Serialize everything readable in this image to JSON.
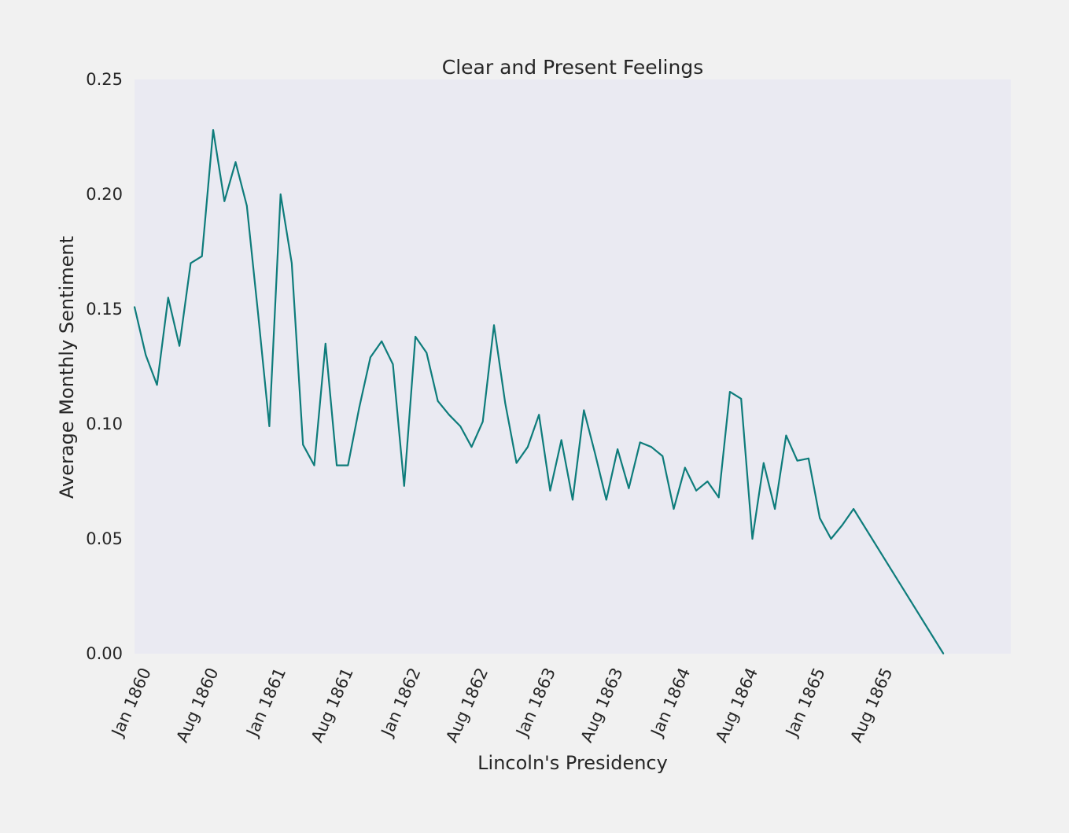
{
  "chart_data": {
    "type": "line",
    "title": "Clear and Present Feelings",
    "xlabel": "Lincoln's Presidency",
    "ylabel": "Average Monthly Sentiment",
    "ylim": [
      0.0,
      0.25
    ],
    "y_ticks": [
      {
        "value": 0.0,
        "label": "0.00"
      },
      {
        "value": 0.05,
        "label": "0.05"
      },
      {
        "value": 0.1,
        "label": "0.10"
      },
      {
        "value": 0.15,
        "label": "0.15"
      },
      {
        "value": 0.2,
        "label": "0.20"
      },
      {
        "value": 0.25,
        "label": "0.25"
      }
    ],
    "xlim_months": [
      0,
      78
    ],
    "x_ticks": [
      {
        "month_index": 1,
        "label": "Jan 1860"
      },
      {
        "month_index": 7,
        "label": "Aug 1860"
      },
      {
        "month_index": 13,
        "label": "Jan 1861"
      },
      {
        "month_index": 19,
        "label": "Aug 1861"
      },
      {
        "month_index": 25,
        "label": "Jan 1862"
      },
      {
        "month_index": 31,
        "label": "Aug 1862"
      },
      {
        "month_index": 37,
        "label": "Jan 1863"
      },
      {
        "month_index": 43,
        "label": "Aug 1863"
      },
      {
        "month_index": 49,
        "label": "Jan 1864"
      },
      {
        "month_index": 55,
        "label": "Aug 1864"
      },
      {
        "month_index": 61,
        "label": "Jan 1865"
      },
      {
        "month_index": 67,
        "label": "Aug 1865"
      }
    ],
    "grid": false,
    "line_color": "#0e7c7b",
    "plot_background": "#eaeaf2",
    "series": [
      {
        "name": "Average Monthly Sentiment",
        "x_month_index": [
          0,
          1,
          2,
          3,
          4,
          5,
          6,
          7,
          8,
          9,
          10,
          11,
          12,
          13,
          14,
          15,
          16,
          17,
          18,
          19,
          20,
          21,
          22,
          23,
          24,
          25,
          26,
          27,
          28,
          29,
          30,
          31,
          32,
          33,
          34,
          35,
          36,
          37,
          38,
          39,
          40,
          41,
          42,
          43,
          44,
          45,
          46,
          47,
          48,
          49,
          50,
          51,
          52,
          53,
          54,
          55,
          56,
          57,
          58,
          59,
          60,
          61,
          62,
          63,
          64,
          72
        ],
        "values": [
          0.151,
          0.13,
          0.117,
          0.155,
          0.134,
          0.17,
          0.173,
          0.228,
          0.197,
          0.214,
          0.195,
          0.148,
          0.099,
          0.2,
          0.17,
          0.091,
          0.082,
          0.135,
          0.082,
          0.082,
          0.107,
          0.129,
          0.136,
          0.126,
          0.073,
          0.138,
          0.131,
          0.11,
          0.104,
          0.099,
          0.09,
          0.101,
          0.143,
          0.109,
          0.083,
          0.09,
          0.104,
          0.071,
          0.093,
          0.067,
          0.106,
          0.087,
          0.067,
          0.089,
          0.072,
          0.092,
          0.09,
          0.086,
          0.063,
          0.081,
          0.071,
          0.075,
          0.068,
          0.114,
          0.111,
          0.05,
          0.083,
          0.063,
          0.095,
          0.084,
          0.085,
          0.059,
          0.05,
          0.056,
          0.063,
          0.0
        ]
      }
    ]
  }
}
